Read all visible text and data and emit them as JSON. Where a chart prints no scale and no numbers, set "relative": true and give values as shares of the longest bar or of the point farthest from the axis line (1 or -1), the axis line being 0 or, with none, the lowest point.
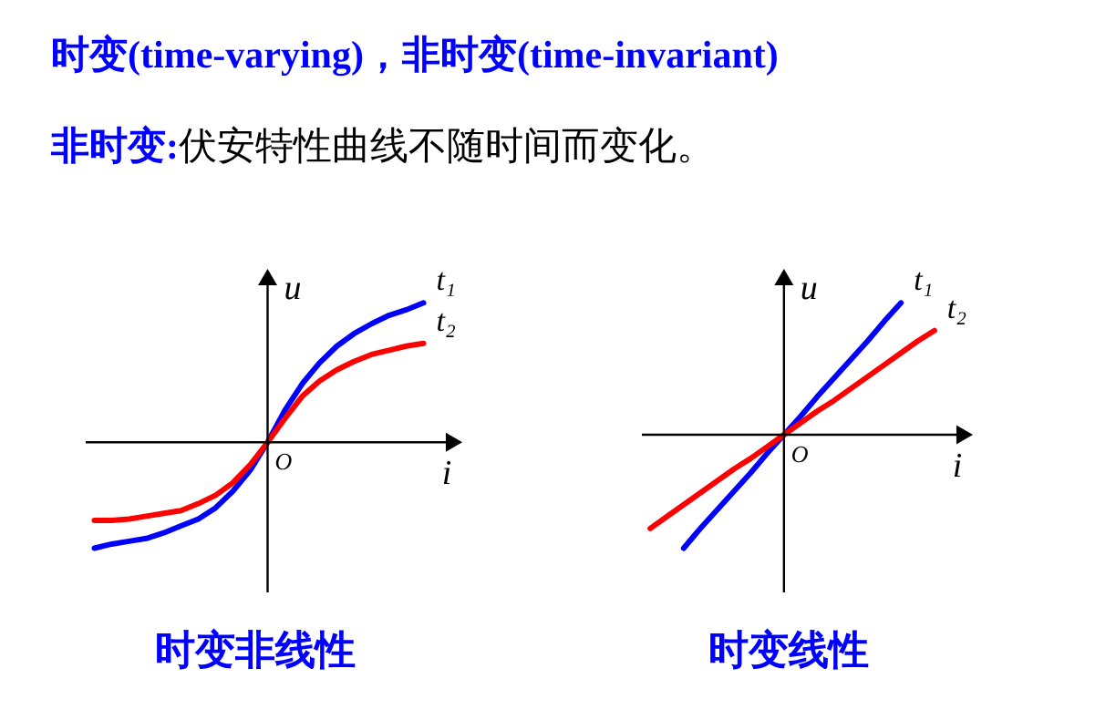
{
  "chart_data": [
    {
      "type": "line",
      "title": "时变非线性",
      "xlabel": "i",
      "ylabel": "u",
      "relative": true,
      "annotations": [
        "时变(time-varying)，非时变(time-invariant)",
        "非时变:",
        "伏安特性曲线不随时间而变化。",
        "O"
      ],
      "categories": [
        null,
        null,
        null,
        null,
        null,
        null,
        null,
        null,
        null,
        null,
        null,
        null,
        null,
        null,
        null,
        null,
        null,
        null,
        null,
        null
      ],
      "series": [
        {
          "name": "t₁",
          "color": "#0000ff",
          "values": [
            -0.76,
            -0.73,
            -0.71,
            -0.69,
            -0.65,
            -0.6,
            -0.55,
            -0.47,
            -0.35,
            -0.2,
            0,
            0.23,
            0.42,
            0.57,
            0.69,
            0.78,
            0.85,
            0.91,
            0.95,
            1
          ]
        },
        {
          "name": "t₂",
          "color": "#ff0000",
          "values": [
            -0.56,
            -0.56,
            -0.55,
            -0.53,
            -0.51,
            -0.49,
            -0.44,
            -0.38,
            -0.29,
            -0.16,
            0,
            0.17,
            0.33,
            0.44,
            0.52,
            0.58,
            0.63,
            0.66,
            0.69,
            0.71
          ]
        }
      ]
    },
    {
      "type": "line",
      "title": "时变线性",
      "xlabel": "i",
      "ylabel": "u",
      "relative": true,
      "annotations": [
        "O"
      ],
      "categories": [
        null,
        null,
        null,
        null,
        null,
        null,
        null,
        null,
        null,
        null,
        null,
        null,
        null,
        null,
        null,
        null,
        null,
        null
      ],
      "series": [
        {
          "name": "t₁",
          "color": "#0000ff",
          "values": [
            null,
            null,
            -0.86,
            -0.71,
            -0.57,
            -0.43,
            -0.29,
            -0.14,
            0,
            0.14,
            0.29,
            0.43,
            0.57,
            0.71,
            0.86,
            1,
            null,
            null
          ]
        },
        {
          "name": "t₂",
          "color": "#ff0000",
          "values": [
            -0.71,
            -0.62,
            -0.53,
            -0.44,
            -0.35,
            -0.26,
            -0.18,
            -0.09,
            0,
            0.09,
            0.18,
            0.26,
            0.35,
            0.44,
            0.53,
            0.62,
            0.71,
            0.79
          ]
        }
      ]
    }
  ]
}
